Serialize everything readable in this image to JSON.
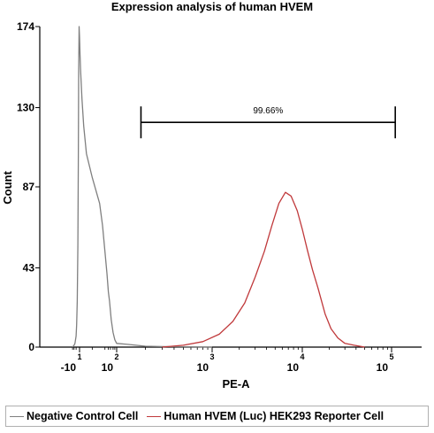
{
  "chart_data": {
    "type": "line",
    "title": "Expression analysis of human HVEM",
    "xlabel": "PE-A",
    "ylabel": "Count",
    "xscale": "biexponential",
    "xlim": [
      -40,
      200000
    ],
    "ylim": [
      0,
      174
    ],
    "y_ticks": [
      0,
      43,
      87,
      130,
      174
    ],
    "x_ticks": [
      {
        "base": "-10",
        "exp": "1",
        "value": -10
      },
      {
        "base": "10",
        "exp": "2",
        "value": 100
      },
      {
        "base": "10",
        "exp": "3",
        "value": 1000
      },
      {
        "base": "10",
        "exp": "4",
        "value": 10000
      },
      {
        "base": "10",
        "exp": "5",
        "value": 100000
      }
    ],
    "gate": {
      "label": "99.66%",
      "x_start": 180,
      "x_end": 110000,
      "y": 122
    },
    "legend_position": "bottom",
    "grid": false,
    "series": [
      {
        "name": "Negative Control Cell",
        "color": "#7f7f7f",
        "x": [
          -40,
          -30,
          -25,
          -20,
          -18,
          -16,
          -14,
          -13,
          -12,
          -11,
          -10,
          -9,
          -8,
          -6,
          -4,
          -2,
          0,
          3,
          6,
          10,
          15,
          20,
          25,
          35,
          50,
          70,
          100,
          130,
          160,
          200,
          300,
          500,
          1000
        ],
        "y": [
          0,
          1,
          2,
          6,
          12,
          25,
          55,
          100,
          150,
          174,
          168,
          158,
          150,
          135,
          120,
          105,
          92,
          78,
          66,
          52,
          40,
          30,
          25,
          15,
          8,
          4,
          2,
          1.5,
          1,
          0.5,
          0.3,
          0.2,
          0
        ]
      },
      {
        "name": "Human HVEM (Luc) HEK293 Reporter Cell",
        "color": "#c0393b",
        "x": [
          300,
          500,
          800,
          1200,
          1700,
          2300,
          3000,
          3800,
          4600,
          5500,
          6500,
          7500,
          8800,
          10000,
          11500,
          13000,
          15000,
          18000,
          21000,
          25000,
          30000,
          38000,
          50000
        ],
        "y": [
          0,
          1,
          3,
          7,
          14,
          24,
          38,
          52,
          66,
          78,
          84,
          82,
          74,
          64,
          52,
          42,
          32,
          18,
          10,
          5,
          2,
          1,
          0
        ]
      }
    ]
  }
}
